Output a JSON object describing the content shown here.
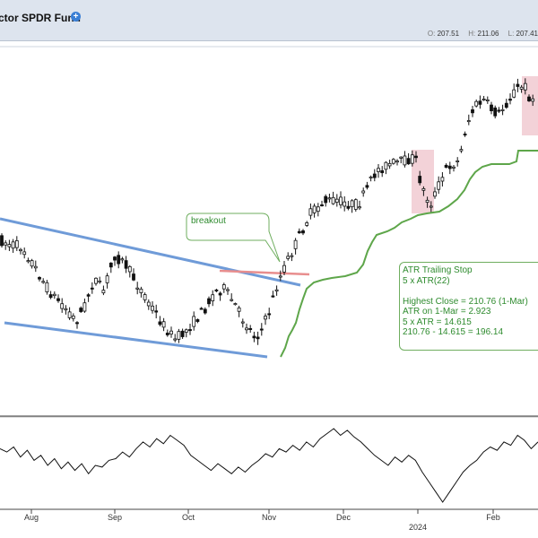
{
  "header": {
    "title": "ctor SPDR Fund",
    "info_icon": "info-icon",
    "ohlc": [
      {
        "key": "O:",
        "value": "207.51"
      },
      {
        "key": "H:",
        "value": "211.06"
      },
      {
        "key": "L:",
        "value": "207.41"
      }
    ]
  },
  "colors": {
    "header_bg": "#dde4ee",
    "trendline": "#6f9bd8",
    "atr_stop": "#5ea64a",
    "annotation": "#2e8b2e",
    "highlight": "#f3d2d8",
    "breakout_line": "#e88e8e",
    "candle_up": "#ffffff",
    "candle_down": "#111111"
  },
  "annotations": {
    "breakout": "breakout",
    "atr_box": [
      "ATR Trailing Stop",
      "5 x ATR(22)",
      "",
      "Highest Close = 210.76 (1-Mar)",
      "ATR on 1-Mar = 2.923",
      "5 x ATR = 14.615",
      "210.76 - 14.615 = 196.14"
    ]
  },
  "chart_data": {
    "type": "candlestick",
    "x_labels": [
      "Aug",
      "Sep",
      "Oct",
      "Nov",
      "Dec",
      "2024",
      "Feb"
    ],
    "price_range": [
      160,
      220
    ],
    "key_levels": {
      "breakout_level": 180,
      "highest_close": 210.76,
      "atr_on_1_mar": 2.923,
      "five_atr": 14.615,
      "atr_stop": 196.14
    },
    "indicator": {
      "type": "line",
      "values": [
        62,
        60,
        63,
        57,
        61,
        55,
        58,
        52,
        56,
        50,
        54,
        49,
        53,
        47,
        52,
        51,
        55,
        56,
        60,
        57,
        62,
        66,
        63,
        68,
        65,
        70,
        67,
        64,
        58,
        55,
        52,
        49,
        53,
        50,
        47,
        51,
        48,
        52,
        55,
        59,
        57,
        62,
        60,
        64,
        61,
        66,
        63,
        68,
        71,
        74,
        70,
        73,
        69,
        66,
        62,
        58,
        55,
        52,
        57,
        54,
        58,
        55,
        48,
        42,
        36,
        30,
        36,
        42,
        48,
        52,
        55,
        60,
        63,
        61,
        66,
        64,
        70,
        67,
        62,
        66
      ]
    }
  }
}
